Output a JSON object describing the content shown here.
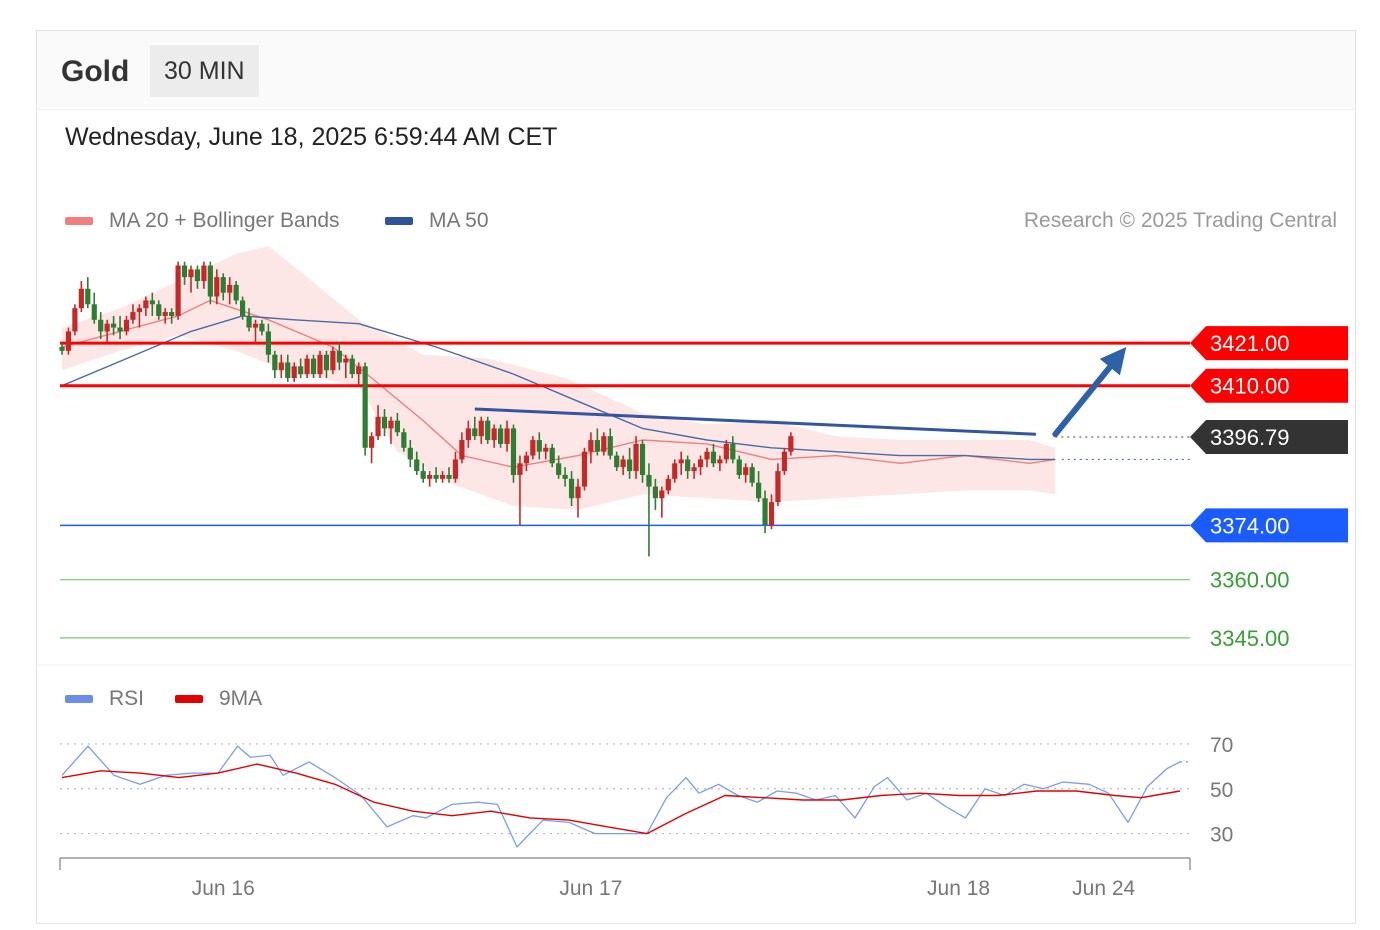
{
  "header": {
    "title": "Gold",
    "timeframe": "30 MIN"
  },
  "timestamp": "Wednesday, June 18, 2025 6:59:44 AM CET",
  "legend_main": [
    {
      "label": "MA 20 + Bollinger Bands",
      "color": "#f08080"
    },
    {
      "label": "MA 50",
      "color": "#2e5597"
    }
  ],
  "legend_rsi": [
    {
      "label": "RSI",
      "color": "#6a8ee8"
    },
    {
      "label": "9MA",
      "color": "#e30000"
    }
  ],
  "credit": "Research © 2025 Trading Central",
  "colors": {
    "up": "#c62828",
    "down": "#2e7d32",
    "resistance": "#ff0000",
    "support": "#1a5cff",
    "target": "#35a035",
    "arrow": "#2c62a8",
    "trend": "#3456a0"
  },
  "chart_data": {
    "type": "candlestick",
    "ylim": [
      3338,
      3445
    ],
    "xlim": [
      0,
      164
    ],
    "x_ticks": [
      {
        "label": "Jun 16",
        "x": 25
      },
      {
        "label": "Jun 17",
        "x": 82
      },
      {
        "label": "Jun 18",
        "x": 139
      },
      {
        "label": "Jun 24",
        "x": 161.5
      }
    ],
    "levels": [
      {
        "value": 3421.0,
        "label": "3421.00",
        "kind": "resistance"
      },
      {
        "value": 3410.0,
        "label": "3410.00",
        "kind": "resistance"
      },
      {
        "value": 3396.79,
        "label": "3396.79",
        "kind": "current"
      },
      {
        "value": 3374.0,
        "label": "3374.00",
        "kind": "support"
      },
      {
        "value": 3360.0,
        "label": "3360.00",
        "kind": "target"
      },
      {
        "value": 3345.0,
        "label": "3345.00",
        "kind": "target"
      }
    ],
    "trendline": {
      "x1": 64,
      "y1": 3404,
      "x2": 151,
      "y2": 3397.5
    },
    "projection_arrow": {
      "x1": 154,
      "y1": 3397.5,
      "x2": 165,
      "y2": 3420
    },
    "ohlc": [
      [
        3420,
        3421,
        3418,
        3419
      ],
      [
        3419,
        3425,
        3418,
        3424
      ],
      [
        3424,
        3431,
        3423,
        3430
      ],
      [
        3430,
        3437,
        3429,
        3435
      ],
      [
        3435,
        3438,
        3430,
        3431
      ],
      [
        3431,
        3434,
        3426,
        3427
      ],
      [
        3427,
        3429,
        3422,
        3424
      ],
      [
        3424,
        3427,
        3421,
        3426
      ],
      [
        3426,
        3428,
        3423,
        3425
      ],
      [
        3425,
        3428,
        3422,
        3424
      ],
      [
        3424,
        3428,
        3423,
        3427
      ],
      [
        3427,
        3431,
        3426,
        3429
      ],
      [
        3429,
        3431,
        3425,
        3430
      ],
      [
        3430,
        3433,
        3428,
        3432
      ],
      [
        3432,
        3434,
        3428,
        3431
      ],
      [
        3431,
        3432,
        3427,
        3428
      ],
      [
        3428,
        3430,
        3426,
        3429
      ],
      [
        3429,
        3430,
        3426,
        3428
      ],
      [
        3428,
        3442,
        3427,
        3441
      ],
      [
        3441,
        3442,
        3436,
        3438
      ],
      [
        3438,
        3441,
        3434,
        3440
      ],
      [
        3440,
        3441,
        3435,
        3437
      ],
      [
        3437,
        3442,
        3435,
        3441
      ],
      [
        3441,
        3442,
        3431,
        3433
      ],
      [
        3433,
        3440,
        3431,
        3438
      ],
      [
        3438,
        3439,
        3432,
        3434
      ],
      [
        3434,
        3438,
        3431,
        3436
      ],
      [
        3436,
        3437,
        3431,
        3432
      ],
      [
        3432,
        3433,
        3427,
        3428
      ],
      [
        3428,
        3430,
        3424,
        3425
      ],
      [
        3425,
        3427,
        3421,
        3426
      ],
      [
        3426,
        3427,
        3423,
        3424
      ],
      [
        3424,
        3426,
        3416,
        3418
      ],
      [
        3418,
        3419,
        3412,
        3414
      ],
      [
        3414,
        3418,
        3412,
        3416
      ],
      [
        3416,
        3418,
        3411,
        3412
      ],
      [
        3412,
        3416,
        3411,
        3415
      ],
      [
        3415,
        3417,
        3412,
        3413
      ],
      [
        3413,
        3418,
        3412,
        3417
      ],
      [
        3417,
        3418,
        3412,
        3413
      ],
      [
        3413,
        3419,
        3412,
        3418
      ],
      [
        3418,
        3419,
        3412,
        3414
      ],
      [
        3414,
        3420,
        3413,
        3419
      ],
      [
        3419,
        3421,
        3414,
        3416
      ],
      [
        3416,
        3418,
        3412,
        3417
      ],
      [
        3417,
        3418,
        3412,
        3413
      ],
      [
        3413,
        3416,
        3410,
        3415
      ],
      [
        3415,
        3416,
        3392,
        3394
      ],
      [
        3394,
        3398,
        3390,
        3397
      ],
      [
        3397,
        3405,
        3396,
        3402
      ],
      [
        3402,
        3404,
        3397,
        3399
      ],
      [
        3399,
        3402,
        3395,
        3401
      ],
      [
        3401,
        3403,
        3397,
        3398
      ],
      [
        3398,
        3399,
        3393,
        3394
      ],
      [
        3394,
        3396,
        3389,
        3391
      ],
      [
        3391,
        3393,
        3387,
        3388
      ],
      [
        3388,
        3390,
        3385,
        3386
      ],
      [
        3386,
        3388,
        3384,
        3387
      ],
      [
        3387,
        3389,
        3385,
        3386
      ],
      [
        3386,
        3388,
        3385,
        3387
      ],
      [
        3387,
        3389,
        3385,
        3386
      ],
      [
        3386,
        3393,
        3385,
        3391
      ],
      [
        3391,
        3398,
        3390,
        3396
      ],
      [
        3396,
        3401,
        3394,
        3399
      ],
      [
        3399,
        3402,
        3396,
        3397
      ],
      [
        3397,
        3402,
        3395,
        3401
      ],
      [
        3401,
        3402,
        3395,
        3396
      ],
      [
        3396,
        3400,
        3394,
        3399
      ],
      [
        3399,
        3400,
        3394,
        3395
      ],
      [
        3395,
        3401,
        3393,
        3399
      ],
      [
        3399,
        3400,
        3385,
        3387
      ],
      [
        3387,
        3392,
        3374,
        3390
      ],
      [
        3390,
        3393,
        3388,
        3392
      ],
      [
        3392,
        3397,
        3391,
        3396
      ],
      [
        3396,
        3398,
        3391,
        3393
      ],
      [
        3393,
        3395,
        3391,
        3394
      ],
      [
        3394,
        3395,
        3389,
        3390
      ],
      [
        3390,
        3392,
        3386,
        3387
      ],
      [
        3387,
        3389,
        3384,
        3386
      ],
      [
        3386,
        3388,
        3379,
        3381
      ],
      [
        3381,
        3386,
        3376,
        3384
      ],
      [
        3384,
        3394,
        3383,
        3393
      ],
      [
        3393,
        3398,
        3390,
        3396
      ],
      [
        3396,
        3399,
        3392,
        3393
      ],
      [
        3393,
        3398,
        3392,
        3397
      ],
      [
        3397,
        3399,
        3391,
        3392
      ],
      [
        3392,
        3393,
        3388,
        3389
      ],
      [
        3389,
        3392,
        3387,
        3391
      ],
      [
        3391,
        3394,
        3386,
        3388
      ],
      [
        3388,
        3397,
        3386,
        3395
      ],
      [
        3395,
        3396,
        3385,
        3387
      ],
      [
        3387,
        3390,
        3366,
        3384
      ],
      [
        3384,
        3386,
        3378,
        3381
      ],
      [
        3381,
        3384,
        3376,
        3383
      ],
      [
        3383,
        3387,
        3382,
        3386
      ],
      [
        3386,
        3391,
        3385,
        3390
      ],
      [
        3390,
        3393,
        3387,
        3391
      ],
      [
        3391,
        3392,
        3386,
        3388
      ],
      [
        3388,
        3390,
        3386,
        3389
      ],
      [
        3389,
        3392,
        3387,
        3391
      ],
      [
        3391,
        3394,
        3389,
        3393
      ],
      [
        3393,
        3395,
        3389,
        3390
      ],
      [
        3390,
        3392,
        3388,
        3391
      ],
      [
        3391,
        3396,
        3390,
        3395
      ],
      [
        3395,
        3397,
        3390,
        3391
      ],
      [
        3391,
        3392,
        3386,
        3387
      ],
      [
        3387,
        3390,
        3385,
        3389
      ],
      [
        3389,
        3390,
        3384,
        3385
      ],
      [
        3385,
        3388,
        3380,
        3381
      ],
      [
        3381,
        3383,
        3372,
        3374
      ],
      [
        3374,
        3382,
        3373,
        3380
      ],
      [
        3380,
        3390,
        3379,
        3388
      ],
      [
        3388,
        3394,
        3387,
        3393
      ],
      [
        3393,
        3398,
        3392,
        3397
      ]
    ],
    "ma20": [
      [
        0,
        3420
      ],
      [
        9,
        3424
      ],
      [
        18,
        3428
      ],
      [
        23,
        3432
      ],
      [
        32,
        3427
      ],
      [
        42,
        3420
      ],
      [
        48,
        3412
      ],
      [
        56,
        3401
      ],
      [
        62,
        3392
      ],
      [
        70,
        3389
      ],
      [
        80,
        3392
      ],
      [
        90,
        3396
      ],
      [
        100,
        3395
      ],
      [
        110,
        3391
      ],
      [
        120,
        3392
      ],
      [
        130,
        3390
      ],
      [
        140,
        3392
      ],
      [
        150,
        3390
      ],
      [
        154,
        3391
      ]
    ],
    "ma50": [
      [
        0,
        3410
      ],
      [
        10,
        3417
      ],
      [
        20,
        3424
      ],
      [
        28,
        3428
      ],
      [
        36,
        3427
      ],
      [
        46,
        3426
      ],
      [
        58,
        3420
      ],
      [
        70,
        3413
      ],
      [
        80,
        3406
      ],
      [
        90,
        3399
      ],
      [
        100,
        3396
      ],
      [
        110,
        3394
      ],
      [
        120,
        3393
      ],
      [
        130,
        3392
      ],
      [
        140,
        3392
      ],
      [
        150,
        3391
      ],
      [
        154,
        3391
      ]
    ],
    "bb_upper": [
      [
        0,
        3425
      ],
      [
        9,
        3430
      ],
      [
        18,
        3437
      ],
      [
        27,
        3444
      ],
      [
        32,
        3446
      ],
      [
        38,
        3438
      ],
      [
        46,
        3427
      ],
      [
        56,
        3418
      ],
      [
        66,
        3417
      ],
      [
        78,
        3412
      ],
      [
        90,
        3403
      ],
      [
        100,
        3400
      ],
      [
        110,
        3401
      ],
      [
        120,
        3397
      ],
      [
        130,
        3396
      ],
      [
        140,
        3396
      ],
      [
        150,
        3396
      ],
      [
        154,
        3394
      ]
    ],
    "bb_lower": [
      [
        0,
        3414
      ],
      [
        9,
        3419
      ],
      [
        18,
        3423
      ],
      [
        27,
        3419
      ],
      [
        36,
        3413
      ],
      [
        46,
        3410
      ],
      [
        52,
        3393
      ],
      [
        60,
        3385
      ],
      [
        70,
        3379
      ],
      [
        80,
        3378
      ],
      [
        90,
        3382
      ],
      [
        100,
        3381
      ],
      [
        110,
        3380
      ],
      [
        120,
        3381
      ],
      [
        130,
        3382
      ],
      [
        140,
        3383
      ],
      [
        150,
        3383
      ],
      [
        154,
        3382
      ]
    ],
    "rsi": {
      "ylim": [
        20,
        78
      ],
      "levels": [
        {
          "value": 70,
          "label": "70"
        },
        {
          "value": 50,
          "label": "50"
        },
        {
          "value": 30,
          "label": "30"
        }
      ],
      "rsi": [
        [
          0,
          56
        ],
        [
          4,
          69
        ],
        [
          8,
          56
        ],
        [
          12,
          52
        ],
        [
          16,
          56
        ],
        [
          20,
          57
        ],
        [
          24,
          57
        ],
        [
          27,
          69
        ],
        [
          29,
          64
        ],
        [
          32,
          65
        ],
        [
          34,
          56
        ],
        [
          38,
          62
        ],
        [
          42,
          55
        ],
        [
          46,
          47
        ],
        [
          50,
          33
        ],
        [
          54,
          38
        ],
        [
          56,
          37
        ],
        [
          60,
          43
        ],
        [
          64,
          44
        ],
        [
          67,
          43
        ],
        [
          70,
          24
        ],
        [
          74,
          36
        ],
        [
          78,
          35
        ],
        [
          82,
          30
        ],
        [
          86,
          30
        ],
        [
          90,
          30
        ],
        [
          93,
          46
        ],
        [
          96,
          55
        ],
        [
          98,
          48
        ],
        [
          101,
          52
        ],
        [
          104,
          47
        ],
        [
          107,
          44
        ],
        [
          110,
          49
        ],
        [
          113,
          48
        ],
        [
          116,
          45
        ],
        [
          119,
          47
        ],
        [
          122,
          37
        ],
        [
          125,
          51
        ],
        [
          127,
          55
        ],
        [
          130,
          45
        ],
        [
          133,
          48
        ],
        [
          136,
          42
        ],
        [
          139,
          37
        ],
        [
          142,
          50
        ],
        [
          145,
          47
        ],
        [
          148,
          52
        ],
        [
          151,
          50
        ],
        [
          154,
          53
        ],
        [
          158,
          52
        ],
        [
          161,
          48
        ],
        [
          164,
          35
        ],
        [
          167,
          51
        ],
        [
          170,
          59
        ],
        [
          172,
          62
        ]
      ],
      "ma9": [
        [
          0,
          55
        ],
        [
          6,
          58
        ],
        [
          12,
          57
        ],
        [
          18,
          55
        ],
        [
          24,
          57
        ],
        [
          30,
          61
        ],
        [
          36,
          57
        ],
        [
          42,
          52
        ],
        [
          48,
          44
        ],
        [
          54,
          40
        ],
        [
          60,
          38
        ],
        [
          66,
          40
        ],
        [
          72,
          37
        ],
        [
          78,
          36
        ],
        [
          84,
          33
        ],
        [
          90,
          30
        ],
        [
          96,
          39
        ],
        [
          102,
          47
        ],
        [
          108,
          46
        ],
        [
          114,
          45
        ],
        [
          120,
          45
        ],
        [
          126,
          47
        ],
        [
          132,
          48
        ],
        [
          138,
          47
        ],
        [
          144,
          47
        ],
        [
          150,
          49
        ],
        [
          156,
          49
        ],
        [
          162,
          47
        ],
        [
          166,
          46
        ],
        [
          172,
          49
        ]
      ]
    }
  }
}
